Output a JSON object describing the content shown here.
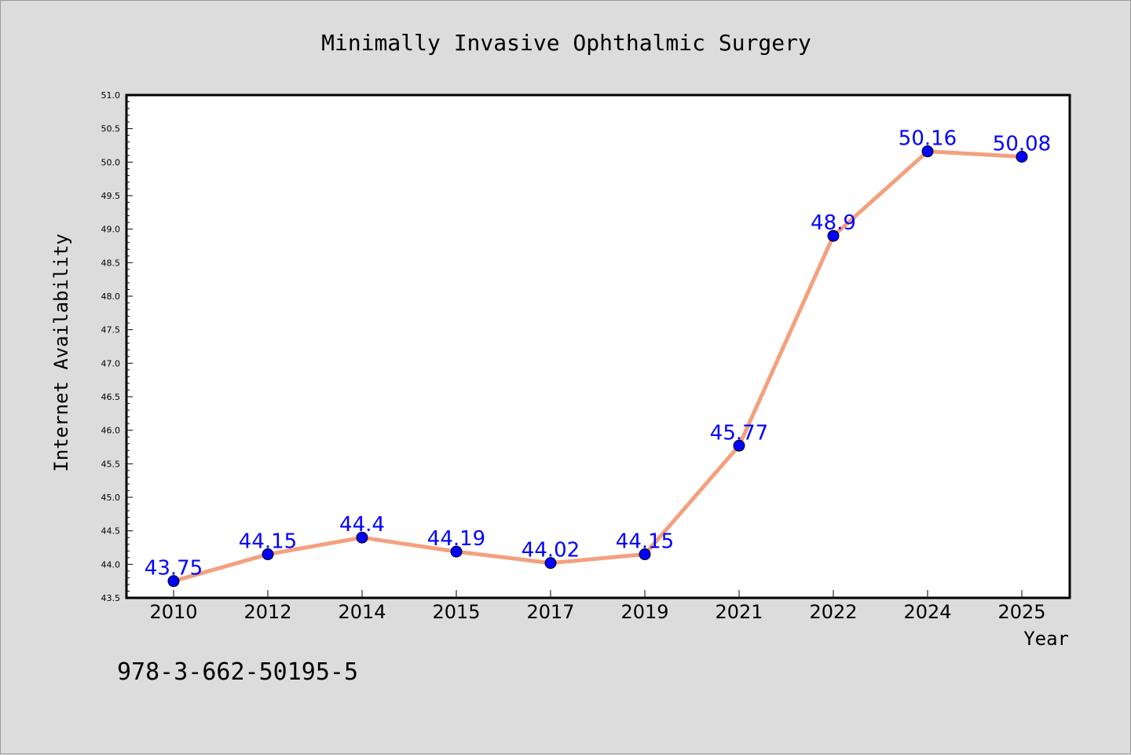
{
  "isbn": "978-3-662-50195-5",
  "colors": {
    "background": "#dcdcdc",
    "plot_background": "#ffffff",
    "line": "#f4a07e",
    "marker": "#0000ff",
    "data_label": "#0000ff"
  },
  "chart_data": {
    "type": "line",
    "title": "Minimally Invasive Ophthalmic Surgery",
    "xlabel": "Year",
    "ylabel": "Internet Availability",
    "categories": [
      "2010",
      "2012",
      "2014",
      "2015",
      "2017",
      "2019",
      "2021",
      "2022",
      "2024",
      "2025"
    ],
    "series": [
      {
        "values": [
          43.75,
          44.15,
          44.4,
          44.19,
          44.02,
          44.15,
          45.77,
          48.9,
          50.16,
          50.08
        ],
        "labels": [
          "43.75",
          "44.15",
          "44.4",
          "44.19",
          "44.02",
          "44.15",
          "45.77",
          "48.9",
          "50.16",
          "50.08"
        ]
      }
    ],
    "ylim": [
      43.5,
      51.0
    ],
    "yticks": [
      "43.5",
      "44.0",
      "44.5",
      "45.0",
      "45.5",
      "46.0",
      "46.5",
      "47.0",
      "47.5",
      "48.0",
      "48.5",
      "49.0",
      "49.5",
      "50.0",
      "50.5",
      "51.0"
    ],
    "grid": false,
    "legend": "none"
  }
}
